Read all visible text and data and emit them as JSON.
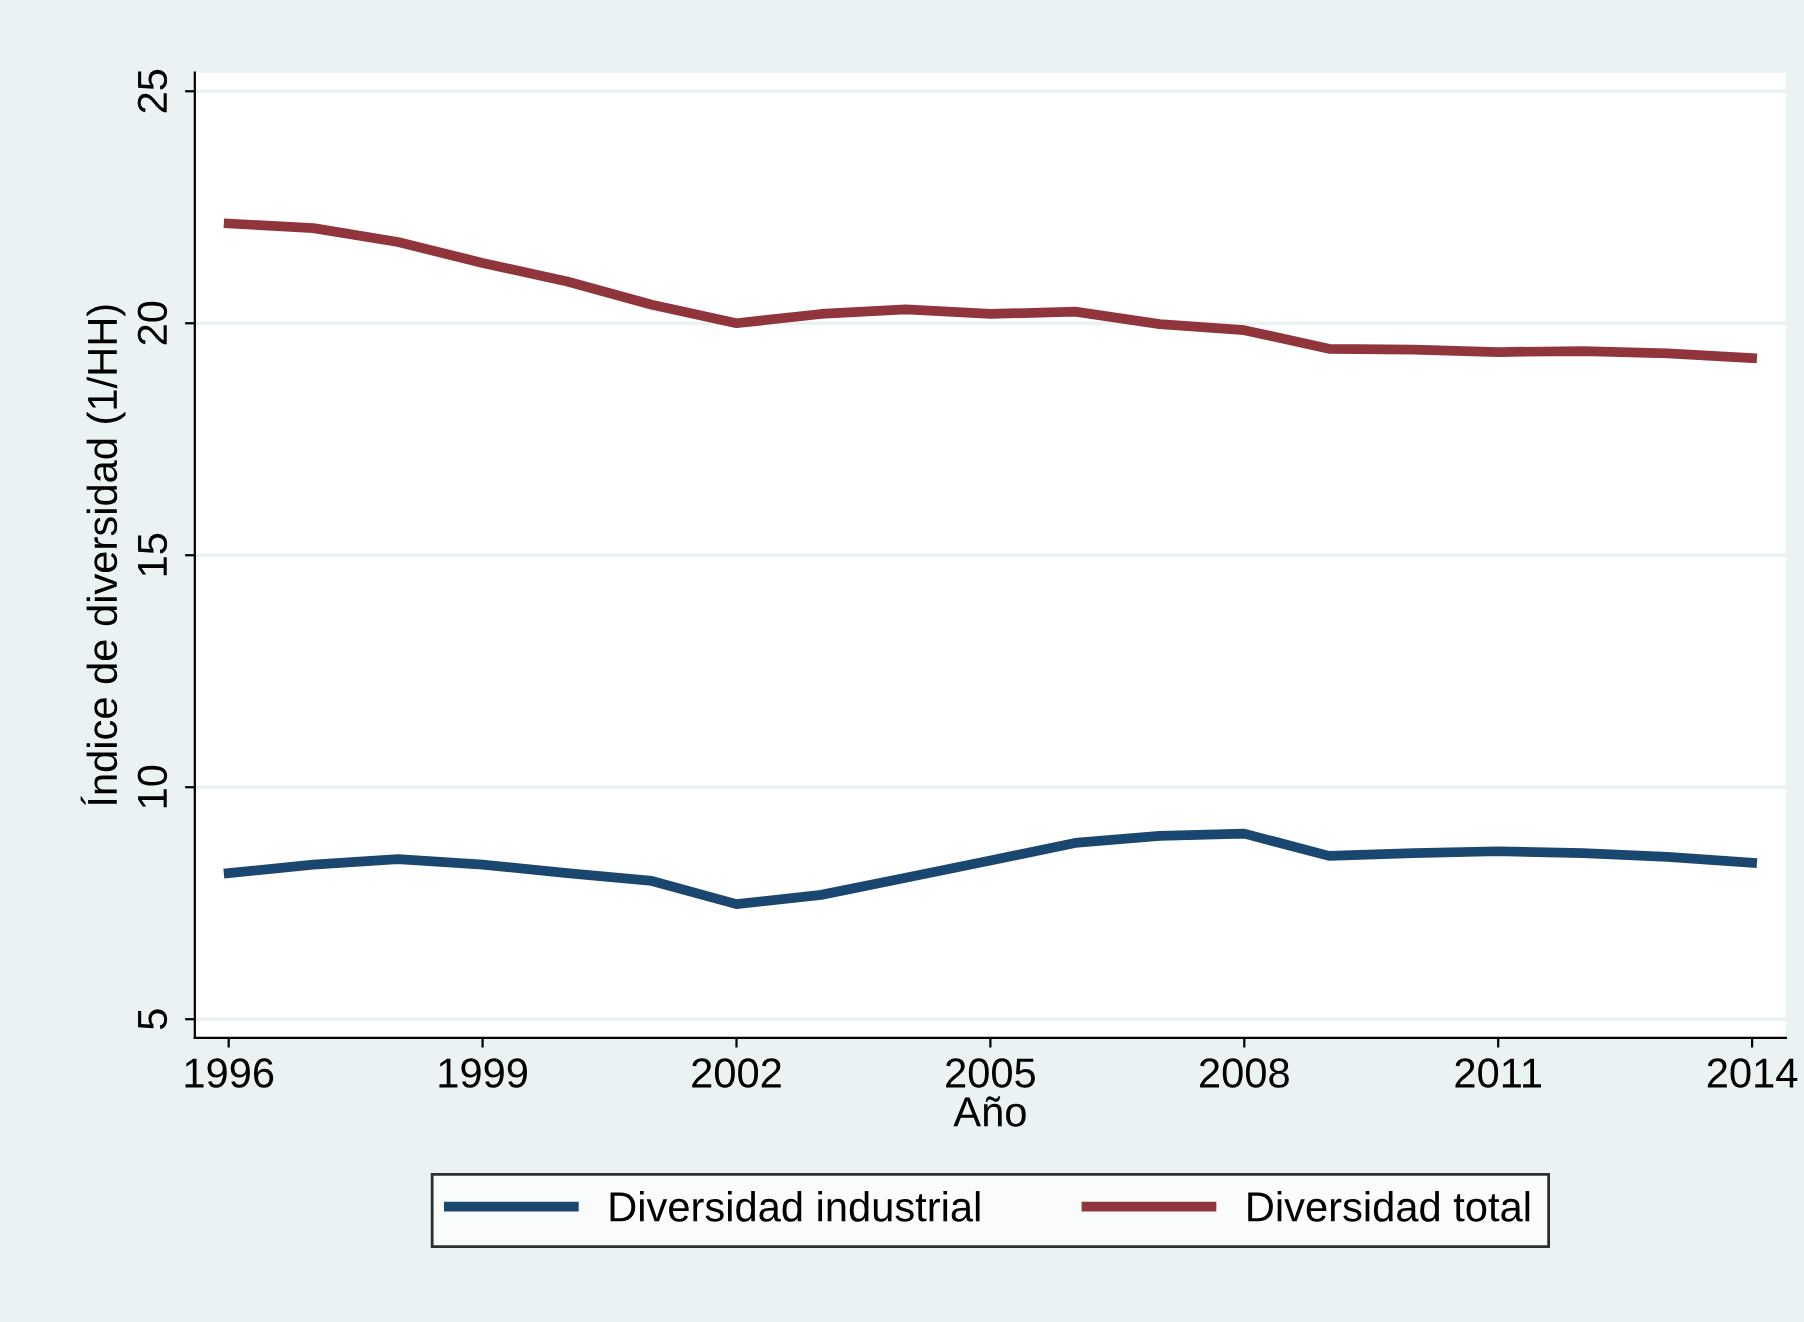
{
  "chart_data": {
    "type": "line",
    "xlabel": "Año",
    "ylabel": "Índice de diversidad (1/HH)",
    "x": [
      1996,
      1997,
      1998,
      1999,
      2000,
      2001,
      2002,
      2003,
      2004,
      2005,
      2006,
      2007,
      2008,
      2009,
      2010,
      2011,
      2012,
      2013,
      2014
    ],
    "series": [
      {
        "name": "Diversidad industrial",
        "color": "#1a476f",
        "values": [
          8.15,
          8.33,
          8.45,
          8.33,
          8.15,
          7.98,
          7.48,
          7.68,
          8.05,
          8.42,
          8.8,
          8.95,
          9.0,
          8.52,
          8.58,
          8.62,
          8.58,
          8.5,
          8.37
        ]
      },
      {
        "name": "Diversidad total",
        "color": "#90353b",
        "values": [
          22.15,
          22.05,
          21.75,
          21.3,
          20.9,
          20.4,
          20.0,
          20.2,
          20.3,
          20.2,
          20.25,
          19.98,
          19.85,
          19.45,
          19.43,
          19.38,
          19.4,
          19.35,
          19.25
        ]
      }
    ],
    "xlim": [
      1995.6,
      2014.4
    ],
    "ylim": [
      4.6,
      25.4
    ],
    "xticks": [
      1996,
      1999,
      2002,
      2005,
      2008,
      2011,
      2014
    ],
    "yticks": [
      5,
      10,
      15,
      20,
      25
    ],
    "grid": "y",
    "legend": "bottom",
    "marker": "none",
    "line_style": "solid"
  }
}
